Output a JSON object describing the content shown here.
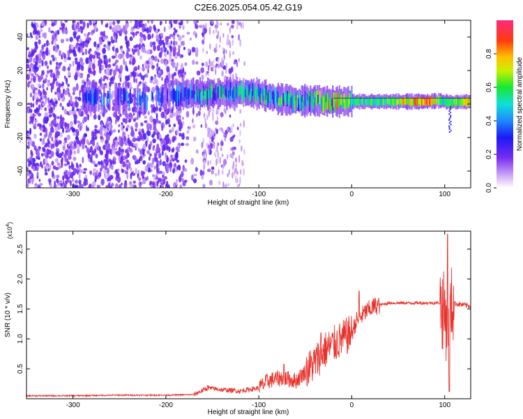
{
  "title": "C2E6.2025.054.05.42.G19",
  "colors": {
    "snr_line": "#e8302a",
    "spectrum_palette": "rainbow (lavender → violet → blue → cyan → green → yellow → orange → red → magenta)"
  },
  "chart_data": [
    {
      "type": "heatmap",
      "xlabel": "Height of straight line (km)",
      "ylabel": "Frequency (Hz)",
      "xlim": [
        -350,
        128
      ],
      "ylim": [
        -50,
        50
      ],
      "xticks": [
        -300,
        -200,
        -100,
        0,
        100
      ],
      "xtick_labels": [
        "-300",
        "-200",
        "-100",
        "0",
        "100"
      ],
      "yticks": [
        -40,
        -20,
        0,
        20,
        40
      ],
      "ytick_labels": [
        "-40",
        "-20",
        "0",
        "20",
        "40"
      ],
      "grid": false,
      "colorbar": {
        "label": "Normalized spectral amplitude",
        "range": [
          0.0,
          1.0
        ],
        "ticks": [
          0.0,
          0.2,
          0.4,
          0.6,
          0.8
        ],
        "tick_labels": [
          "0.0",
          "0.2",
          "0.4",
          "0.6",
          "0.8"
        ]
      },
      "ridge_frequency_profile": [
        {
          "x": -285,
          "y": 3
        },
        {
          "x": -250,
          "y": 3
        },
        {
          "x": -220,
          "y": 3
        },
        {
          "x": -180,
          "y": 6
        },
        {
          "x": -150,
          "y": 6
        },
        {
          "x": -120,
          "y": 7
        },
        {
          "x": -100,
          "y": 6
        },
        {
          "x": -80,
          "y": 3
        },
        {
          "x": -60,
          "y": 2
        },
        {
          "x": -40,
          "y": 2
        },
        {
          "x": -20,
          "y": 1.5
        },
        {
          "x": 0,
          "y": 1.5
        },
        {
          "x": 40,
          "y": 1.5
        },
        {
          "x": 80,
          "y": 1.5
        },
        {
          "x": 95,
          "y": 2
        },
        {
          "x": 105,
          "y": 1
        },
        {
          "x": 128,
          "y": 1.5
        }
      ],
      "ridge_amplitude_profile": [
        {
          "x": -285,
          "y": 0.35
        },
        {
          "x": -240,
          "y": 0.4
        },
        {
          "x": -200,
          "y": 0.3
        },
        {
          "x": -170,
          "y": 0.5
        },
        {
          "x": -130,
          "y": 0.55
        },
        {
          "x": -100,
          "y": 0.55
        },
        {
          "x": -70,
          "y": 0.6
        },
        {
          "x": -40,
          "y": 0.55
        },
        {
          "x": -20,
          "y": 0.85
        },
        {
          "x": 0,
          "y": 0.6
        },
        {
          "x": 30,
          "y": 0.6
        },
        {
          "x": 50,
          "y": 0.75
        },
        {
          "x": 80,
          "y": 0.9
        },
        {
          "x": 100,
          "y": 0.55
        },
        {
          "x": 128,
          "y": 0.85
        }
      ]
    },
    {
      "type": "line",
      "xlabel": "Height of straight line (km)",
      "ylabel": "SNR (10 * v/v)",
      "y_multiplier": "(x10⁴)",
      "y_multiplier_base": "(x10",
      "y_multiplier_exp": "4",
      "y_multiplier_close": ")",
      "xlim": [
        -350,
        128
      ],
      "ylim": [
        0,
        28000
      ],
      "xticks": [
        -300,
        -200,
        -100,
        0,
        100
      ],
      "xtick_labels": [
        "-300",
        "-200",
        "-100",
        "0",
        "100"
      ],
      "yticks": [
        5000,
        10000,
        15000,
        20000,
        25000
      ],
      "ytick_labels": [
        "0.5",
        "1.0",
        "1.5",
        "2.0",
        "2.5"
      ],
      "grid": false,
      "series": [
        {
          "color": "#e8302a",
          "points": [
            {
              "x": -350,
              "y": 500
            },
            {
              "x": -300,
              "y": 500
            },
            {
              "x": -250,
              "y": 600
            },
            {
              "x": -200,
              "y": 600
            },
            {
              "x": -170,
              "y": 700
            },
            {
              "x": -155,
              "y": 1800
            },
            {
              "x": -140,
              "y": 1500
            },
            {
              "x": -120,
              "y": 1300
            },
            {
              "x": -100,
              "y": 1800
            },
            {
              "x": -90,
              "y": 3000
            },
            {
              "x": -75,
              "y": 3500
            },
            {
              "x": -60,
              "y": 3000
            },
            {
              "x": -50,
              "y": 4500
            },
            {
              "x": -40,
              "y": 6000
            },
            {
              "x": -30,
              "y": 8000
            },
            {
              "x": -20,
              "y": 9000
            },
            {
              "x": -10,
              "y": 10000
            },
            {
              "x": 0,
              "y": 11000
            },
            {
              "x": 5,
              "y": 13000
            },
            {
              "x": 15,
              "y": 14500
            },
            {
              "x": 25,
              "y": 15500
            },
            {
              "x": 40,
              "y": 16000
            },
            {
              "x": 60,
              "y": 16000
            },
            {
              "x": 80,
              "y": 16000
            },
            {
              "x": 95,
              "y": 16000
            },
            {
              "x": 100,
              "y": 14000
            },
            {
              "x": 104,
              "y": 12000
            },
            {
              "x": 108,
              "y": 16000
            },
            {
              "x": 115,
              "y": 15800
            },
            {
              "x": 128,
              "y": 15500
            }
          ],
          "peaks": [
            {
              "x": -155,
              "y": 2200
            },
            {
              "x": -73,
              "y": 5800
            },
            {
              "x": -33,
              "y": 11000
            },
            {
              "x": 8,
              "y": 18000
            },
            {
              "x": 103,
              "y": 27500
            },
            {
              "x": 105,
              "y": 1200
            }
          ]
        }
      ]
    }
  ]
}
